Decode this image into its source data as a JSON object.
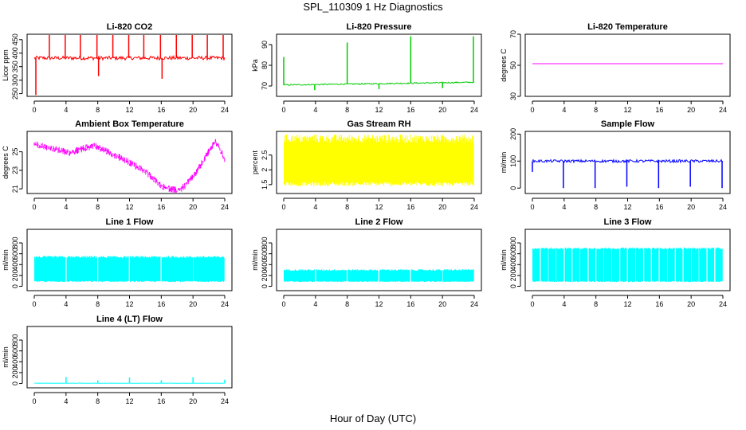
{
  "figure": {
    "title": "SPL_110309  1 Hz Diagnostics",
    "xlabel": "Hour of Day (UTC)"
  },
  "chart_data": [
    {
      "id": "co2",
      "type": "line",
      "title": "Li-820 CO2",
      "ylabel": "Licor ppm",
      "color": "#ff0000",
      "xlim": [
        0,
        24
      ],
      "xticks": [
        0,
        4,
        8,
        12,
        16,
        20,
        24
      ],
      "ylim": [
        240,
        470
      ],
      "yticks": [
        250,
        300,
        350,
        400,
        450
      ],
      "baseline": 382,
      "noise": 7,
      "style": "trace",
      "spikes": [
        [
          0.2,
          245
        ],
        [
          1.9,
          468
        ],
        [
          3.9,
          468
        ],
        [
          5.8,
          468
        ],
        [
          7.9,
          468
        ],
        [
          8.1,
          315
        ],
        [
          9.9,
          468
        ],
        [
          11.9,
          468
        ],
        [
          13.8,
          468
        ],
        [
          15.9,
          468
        ],
        [
          16.1,
          305
        ],
        [
          17.9,
          468
        ],
        [
          19.9,
          468
        ],
        [
          21.8,
          468
        ],
        [
          23.8,
          468
        ]
      ]
    },
    {
      "id": "pressure",
      "type": "line",
      "title": "Li-820 Pressure",
      "ylabel": "kPa",
      "color": "#00cc00",
      "xlim": [
        0,
        24
      ],
      "xticks": [
        0,
        4,
        8,
        12,
        16,
        20,
        24
      ],
      "ylim": [
        65,
        95
      ],
      "yticks": [
        70,
        80,
        90
      ],
      "baseline": [
        [
          0,
          70.5
        ],
        [
          24,
          71.8
        ]
      ],
      "noise": 0.3,
      "style": "trace",
      "spikes": [
        [
          0.0,
          84
        ],
        [
          3.9,
          68
        ],
        [
          8.0,
          91
        ],
        [
          12.0,
          68.5
        ],
        [
          16.0,
          94
        ],
        [
          20.0,
          69
        ],
        [
          23.9,
          94
        ]
      ]
    },
    {
      "id": "licor_temp",
      "type": "line",
      "title": "Li-820 Temperature",
      "ylabel": "degrees C",
      "color": "#ff00ff",
      "xlim": [
        0,
        24
      ],
      "xticks": [
        0,
        4,
        8,
        12,
        16,
        20,
        24
      ],
      "ylim": [
        30,
        70
      ],
      "yticks": [
        30,
        50,
        70
      ],
      "baseline": 51,
      "noise": 0,
      "style": "trace",
      "spikes": []
    },
    {
      "id": "box_temp",
      "type": "line",
      "title": "Ambient Box Temperature",
      "ylabel": "degrees C",
      "color": "#ff00ff",
      "xlim": [
        0,
        24
      ],
      "xticks": [
        0,
        4,
        8,
        12,
        16,
        20,
        24
      ],
      "ylim": [
        20.5,
        27.2
      ],
      "yticks": [
        21,
        23,
        25
      ],
      "baseline": [
        [
          0,
          26.0
        ],
        [
          1.5,
          25.6
        ],
        [
          4.5,
          25.0
        ],
        [
          7.5,
          25.8
        ],
        [
          10.5,
          24.6
        ],
        [
          14,
          23.0
        ],
        [
          16,
          21.4
        ],
        [
          18,
          20.9
        ],
        [
          19,
          21.4
        ],
        [
          20.5,
          23.0
        ],
        [
          22.8,
          26.3
        ],
        [
          24,
          24.3
        ]
      ],
      "noise": 0.55,
      "style": "band",
      "spikes": []
    },
    {
      "id": "rh",
      "type": "line",
      "title": "Gas Stream RH",
      "ylabel": "percent",
      "color": "#ffff00",
      "xlim": [
        0,
        24
      ],
      "xticks": [
        0,
        4,
        8,
        12,
        16,
        20,
        24
      ],
      "ylim": [
        1.2,
        3.3
      ],
      "yticks": [
        1.5,
        2.0,
        2.5
      ],
      "baseline": [
        [
          0,
          3.05
        ],
        [
          24,
          3.05
        ]
      ],
      "low": 1.45,
      "noise": 0.15,
      "style": "fill",
      "spikes": []
    },
    {
      "id": "sample_flow",
      "type": "line",
      "title": "Sample Flow",
      "ylabel": "ml/min",
      "color": "#0000ff",
      "xlim": [
        0,
        24
      ],
      "xticks": [
        0,
        4,
        8,
        12,
        16,
        20,
        24
      ],
      "ylim": [
        -20,
        210
      ],
      "yticks": [
        0,
        100,
        200
      ],
      "baseline": 100,
      "noise": 5,
      "style": "trace",
      "spikes": [
        [
          0.0,
          60
        ],
        [
          3.9,
          0
        ],
        [
          7.9,
          0
        ],
        [
          11.9,
          5
        ],
        [
          15.9,
          0
        ],
        [
          19.9,
          5
        ],
        [
          23.9,
          0
        ]
      ]
    },
    {
      "id": "line1",
      "type": "line",
      "title": "Line 1 Flow",
      "ylabel": "ml/min",
      "color": "#00ffff",
      "xlim": [
        0,
        24
      ],
      "xticks": [
        0,
        4,
        8,
        12,
        16,
        20,
        24
      ],
      "ylim": [
        -80,
        1050
      ],
      "yticks": [
        0,
        200,
        400,
        600,
        800
      ],
      "baseline": 540,
      "low": 80,
      "noise": 20,
      "style": "fill",
      "gaps": [
        4,
        8,
        12,
        16,
        20
      ]
    },
    {
      "id": "line2",
      "type": "line",
      "title": "Line 2 Flow",
      "ylabel": "ml/min",
      "color": "#00ffff",
      "xlim": [
        0,
        24
      ],
      "xticks": [
        0,
        4,
        8,
        12,
        16,
        20,
        24
      ],
      "ylim": [
        -80,
        1050
      ],
      "yticks": [
        0,
        200,
        400,
        600,
        800
      ],
      "baseline": 300,
      "low": 80,
      "noise": 15,
      "style": "fill",
      "gaps": [
        4,
        8,
        12,
        16,
        20
      ]
    },
    {
      "id": "line3",
      "type": "line",
      "title": "Line 3 Flow",
      "ylabel": "ml/min",
      "color": "#00ffff",
      "xlim": [
        0,
        24
      ],
      "xticks": [
        0,
        4,
        8,
        12,
        16,
        20,
        24
      ],
      "ylim": [
        -80,
        1050
      ],
      "yticks": [
        0,
        200,
        400,
        600,
        800
      ],
      "baseline": 700,
      "low": 80,
      "noise": 15,
      "style": "fill",
      "gaps": [
        1,
        2,
        3,
        4,
        5,
        6,
        7,
        8,
        9,
        10,
        11,
        12,
        13,
        14,
        15,
        16,
        17,
        18,
        19,
        20,
        21,
        22,
        23
      ]
    },
    {
      "id": "line4",
      "type": "line",
      "title": "Line 4 (LT) Flow",
      "ylabel": "ml/min",
      "color": "#00ffff",
      "xlim": [
        0,
        24
      ],
      "xticks": [
        0,
        4,
        8,
        12,
        16,
        20,
        24
      ],
      "ylim": [
        -80,
        1050
      ],
      "yticks": [
        0,
        200,
        400,
        600,
        800
      ],
      "baseline": 5,
      "noise": 3,
      "style": "trace",
      "spikes": [
        [
          4.0,
          120
        ],
        [
          8.0,
          60
        ],
        [
          12.0,
          110
        ],
        [
          16.0,
          60
        ],
        [
          20.0,
          115
        ],
        [
          24.0,
          70
        ]
      ]
    }
  ]
}
